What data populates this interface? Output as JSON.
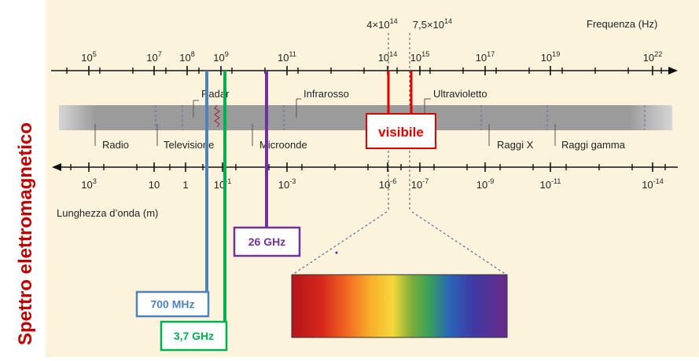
{
  "side_title": "Spettro elettromagnetico",
  "freq_axis": {
    "label": "Frequenza (Hz)",
    "ticks": [
      {
        "base": "10",
        "exp": "5"
      },
      {
        "base": "10",
        "exp": "7"
      },
      {
        "base": "10",
        "exp": "8"
      },
      {
        "base": "10",
        "exp": "9"
      },
      {
        "base": "10",
        "exp": "11"
      },
      {
        "base": "10",
        "exp": "14"
      },
      {
        "base": "10",
        "exp": "15"
      },
      {
        "base": "10",
        "exp": "17"
      },
      {
        "base": "10",
        "exp": "19"
      },
      {
        "base": "10",
        "exp": "22"
      }
    ],
    "visible_bounds": [
      {
        "base": "4×10",
        "exp": "14"
      },
      {
        "base": "7,5×10",
        "exp": "14"
      }
    ]
  },
  "wave_axis": {
    "label": "Lunghezza d’onda (m)",
    "ticks": [
      {
        "base": "10",
        "exp": "3"
      },
      {
        "base": "10",
        "exp": ""
      },
      {
        "base": "1",
        "exp": ""
      },
      {
        "base": "10",
        "exp": "-1"
      },
      {
        "base": "10",
        "exp": "-3"
      },
      {
        "base": "10",
        "exp": "-6"
      },
      {
        "base": "10",
        "exp": "-7"
      },
      {
        "base": "10",
        "exp": "-9"
      },
      {
        "base": "10",
        "exp": "-11"
      },
      {
        "base": "10",
        "exp": "-14"
      }
    ]
  },
  "bands_top": [
    "Radar",
    "Infrarosso",
    "Ultravioletto"
  ],
  "bands_bottom": [
    "Radio",
    "Televisione",
    "Microonde",
    "Raggi X",
    "Raggi gamma"
  ],
  "visible_label": "visibile",
  "markers": [
    {
      "label": "700 MHz",
      "color": "#4f81bd"
    },
    {
      "label": "3,7 GHz",
      "color": "#00b050"
    },
    {
      "label": "26 GHz",
      "color": "#7030a0"
    }
  ],
  "colors": {
    "title": "#c00000",
    "visible": "#e00000",
    "panel": "#fbf3dc",
    "band": "#9b9b9b"
  }
}
